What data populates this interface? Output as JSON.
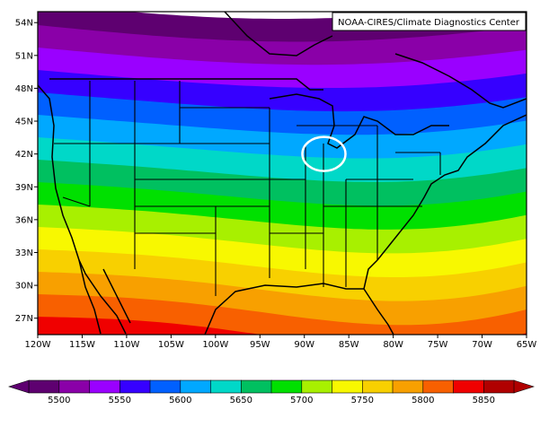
{
  "credit": "NOAA-CIRES/Climate Diagnostics Center",
  "lat_ticks": [
    "54N",
    "51N",
    "48N",
    "45N",
    "42N",
    "39N",
    "36N",
    "33N",
    "30N",
    "27N"
  ],
  "lon_ticks": [
    "120W",
    "115W",
    "110W",
    "105W",
    "100W",
    "95W",
    "90W",
    "85W",
    "80W",
    "75W",
    "70W",
    "65W"
  ],
  "colorbar": {
    "tick_labels": [
      "5500",
      "5550",
      "5600",
      "5650",
      "5700",
      "5750",
      "5800",
      "5850"
    ],
    "colors": [
      "#5e0070",
      "#8a00a8",
      "#9a00ff",
      "#3600ff",
      "#0060ff",
      "#00a8ff",
      "#00d8c8",
      "#00c060",
      "#00e000",
      "#a8f000",
      "#f8f800",
      "#f8d000",
      "#f8a000",
      "#f86000",
      "#f00000",
      "#b00000"
    ]
  },
  "map_extent": {
    "lon_min": -120,
    "lon_max": -65,
    "lat_min": 25.5,
    "lat_max": 55
  },
  "highlight_marker": {
    "lon": -87.8,
    "lat": 42.0
  }
}
